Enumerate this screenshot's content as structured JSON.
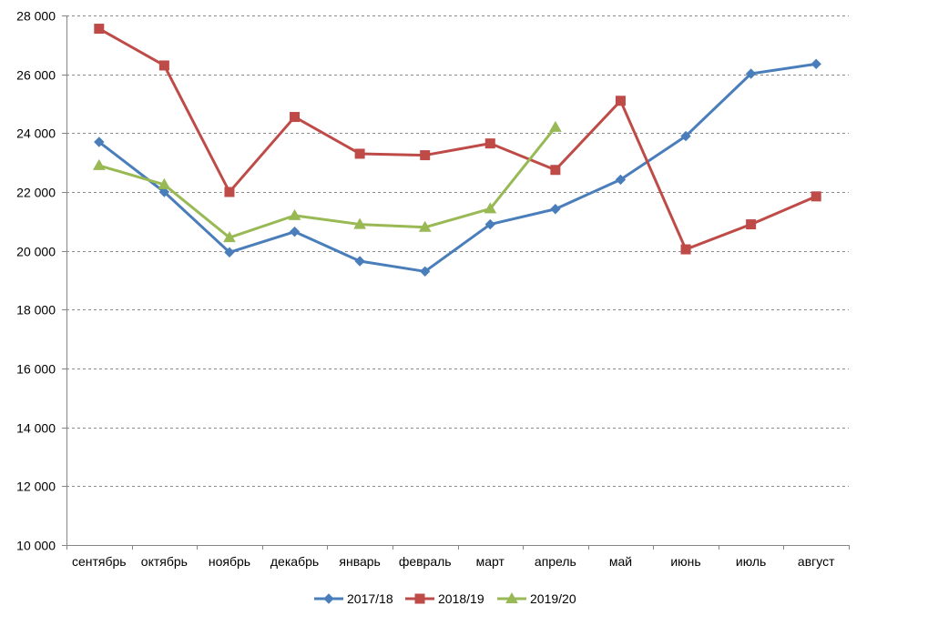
{
  "chart_data": {
    "type": "line",
    "title": "",
    "xlabel": "",
    "ylabel": "",
    "categories": [
      "сентябрь",
      "октябрь",
      "ноябрь",
      "декабрь",
      "январь",
      "февраль",
      "март",
      "апрель",
      "май",
      "июнь",
      "июль",
      "август"
    ],
    "ylim": [
      10000,
      28000
    ],
    "yticks": [
      10000,
      12000,
      14000,
      16000,
      18000,
      20000,
      22000,
      24000,
      26000,
      28000
    ],
    "ytick_labels": [
      "10 000",
      "12 000",
      "14 000",
      "16 000",
      "18 000",
      "20 000",
      "22 000",
      "24 000",
      "26 000",
      "28 000"
    ],
    "grid": "horizontal",
    "legend_position": "bottom",
    "series": [
      {
        "name": "2017/18",
        "color": "#4a7ebb",
        "marker": "diamond",
        "values": [
          23700,
          22000,
          19950,
          20650,
          19650,
          19300,
          20900,
          21420,
          22420,
          23900,
          26020,
          26350
        ]
      },
      {
        "name": "2018/19",
        "color": "#be4b48",
        "marker": "square",
        "values": [
          27550,
          26300,
          22000,
          24550,
          23300,
          23250,
          23650,
          22750,
          25100,
          20050,
          20900,
          21850
        ]
      },
      {
        "name": "2019/20",
        "color": "#98b954",
        "marker": "triangle",
        "values": [
          22900,
          22250,
          20450,
          21200,
          20900,
          20800,
          21430,
          24200,
          null,
          null,
          null,
          null
        ]
      }
    ]
  }
}
